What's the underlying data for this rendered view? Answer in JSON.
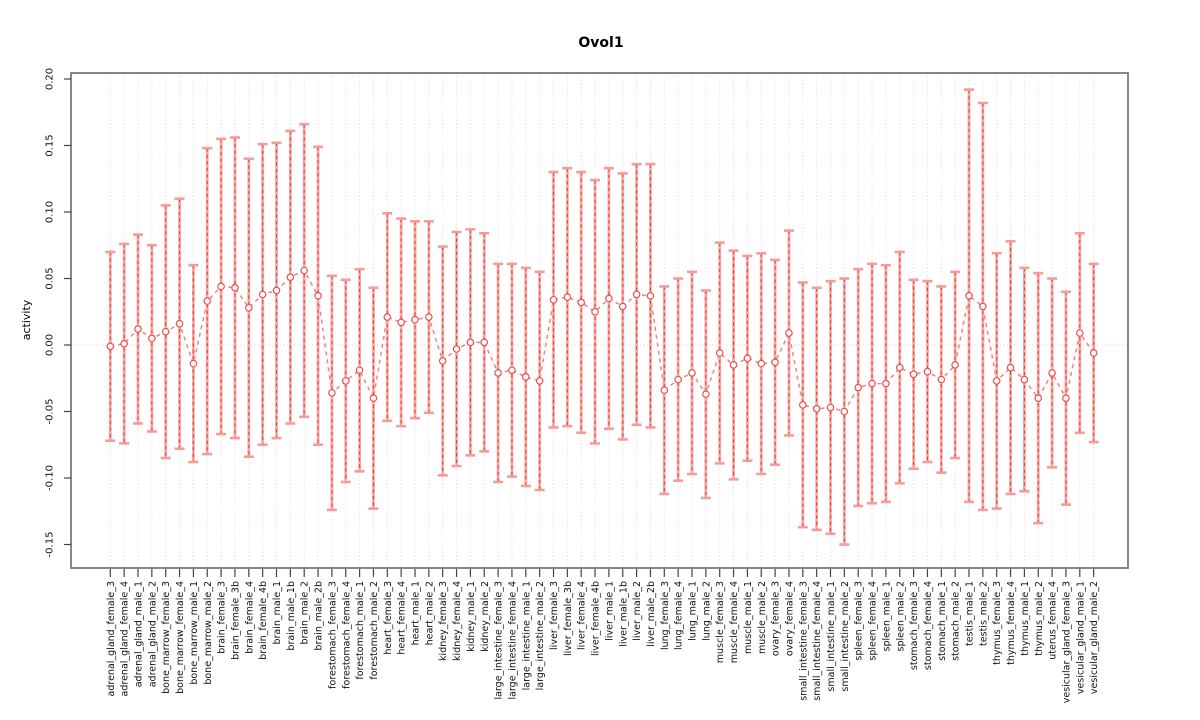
{
  "chart_data": {
    "type": "line",
    "title": "Ovol1",
    "xlabel": "",
    "ylabel": "activity",
    "ylim": [
      -0.167,
      0.205
    ],
    "grid": "vertical-dotted-per-sample",
    "zero_line": true,
    "legend": "none",
    "error_bars": "symmetric, capped",
    "ytick_values": [
      0.2,
      0.15,
      0.1,
      0.05,
      0.0,
      -0.05,
      -0.1,
      -0.15
    ],
    "ytick_labels": [
      "0.20",
      "0.15",
      "0.10",
      "0.05",
      "0.00",
      "-0.05",
      "-0.10",
      "-0.15"
    ],
    "categories": [
      "adrenal_gland_female_3",
      "adrenal_gland_female_4",
      "adrenal_gland_male_1",
      "adrenal_gland_male_2",
      "bone_marrow_female_3",
      "bone_marrow_female_4",
      "bone_marrow_male_1",
      "bone_marrow_male_2",
      "brain_female_3",
      "brain_female_3b",
      "brain_female_4",
      "brain_female_4b",
      "brain_male_1",
      "brain_male_1b",
      "brain_male_2",
      "brain_male_2b",
      "forestomach_female_3",
      "forestomach_female_4",
      "forestomach_male_1",
      "forestomach_male_2",
      "heart_female_3",
      "heart_female_4",
      "heart_male_1",
      "heart_male_2",
      "kidney_female_3",
      "kidney_female_4",
      "kidney_male_1",
      "kidney_male_2",
      "large_intestine_female_3",
      "large_intestine_female_4",
      "large_intestine_male_1",
      "large_intestine_male_2",
      "liver_female_3",
      "liver_female_3b",
      "liver_female_4",
      "liver_female_4b",
      "liver_male_1",
      "liver_male_1b",
      "liver_male_2",
      "liver_male_2b",
      "lung_female_3",
      "lung_female_4",
      "lung_male_1",
      "lung_male_2",
      "muscle_female_3",
      "muscle_female_4",
      "muscle_male_1",
      "muscle_male_2",
      "ovary_female_3",
      "ovary_female_4",
      "small_intestine_female_3",
      "small_intestine_female_4",
      "small_intestine_male_1",
      "small_intestine_male_2",
      "spleen_female_3",
      "spleen_female_4",
      "spleen_male_1",
      "spleen_male_2",
      "stomach_female_3",
      "stomach_female_4",
      "stomach_male_1",
      "stomach_male_2",
      "testis_male_1",
      "testis_male_2",
      "thymus_female_3",
      "thymus_female_4",
      "thymus_male_1",
      "thymus_male_2",
      "uterus_female_4",
      "vesicular_gland_female_3",
      "vesicular_gland_male_1",
      "vesicular_gland_male_2"
    ],
    "series": [
      {
        "name": "activity",
        "values": [
          -0.001,
          0.001,
          0.012,
          0.005,
          0.01,
          0.016,
          -0.014,
          0.033,
          0.044,
          0.043,
          0.028,
          0.038,
          0.041,
          0.051,
          0.056,
          0.037,
          -0.036,
          -0.027,
          -0.019,
          -0.04,
          0.021,
          0.017,
          0.019,
          0.021,
          -0.012,
          -0.003,
          0.002,
          0.002,
          -0.021,
          -0.019,
          -0.024,
          -0.027,
          0.034,
          0.036,
          0.032,
          0.025,
          0.035,
          0.029,
          0.038,
          0.037,
          -0.034,
          -0.026,
          -0.021,
          -0.037,
          -0.006,
          -0.015,
          -0.01,
          -0.014,
          -0.013,
          0.009,
          -0.045,
          -0.048,
          -0.047,
          -0.05,
          -0.032,
          -0.029,
          -0.029,
          -0.017,
          -0.022,
          -0.02,
          -0.026,
          -0.015,
          0.037,
          0.029,
          -0.027,
          -0.017,
          -0.026,
          -0.04,
          -0.021,
          -0.04,
          0.009,
          -0.006
        ],
        "errors": [
          0.071,
          0.075,
          0.071,
          0.07,
          0.095,
          0.094,
          0.074,
          0.115,
          0.111,
          0.113,
          0.112,
          0.113,
          0.111,
          0.11,
          0.11,
          0.112,
          0.088,
          0.076,
          0.076,
          0.083,
          0.078,
          0.078,
          0.074,
          0.072,
          0.086,
          0.088,
          0.085,
          0.082,
          0.082,
          0.08,
          0.082,
          0.082,
          0.096,
          0.097,
          0.098,
          0.099,
          0.098,
          0.1,
          0.098,
          0.099,
          0.078,
          0.076,
          0.076,
          0.078,
          0.083,
          0.086,
          0.077,
          0.083,
          0.077,
          0.077,
          0.092,
          0.091,
          0.095,
          0.1,
          0.089,
          0.09,
          0.089,
          0.087,
          0.071,
          0.068,
          0.07,
          0.07,
          0.155,
          0.153,
          0.096,
          0.095,
          0.084,
          0.094,
          0.071,
          0.08,
          0.075,
          0.067
        ]
      }
    ]
  },
  "colors": {
    "bar_solid": "#f9a8a4",
    "bar_dash": "#e2403c",
    "cap": "#f59b98",
    "point_stroke": "#ee4f4b",
    "point_fill": "#ffffff",
    "series_line": "#f4817d",
    "grid": "#d7d7d7",
    "zero_line": "#fbc6c4",
    "frame": "#7a7a7a",
    "tick": "#444444",
    "text": "#111111"
  }
}
